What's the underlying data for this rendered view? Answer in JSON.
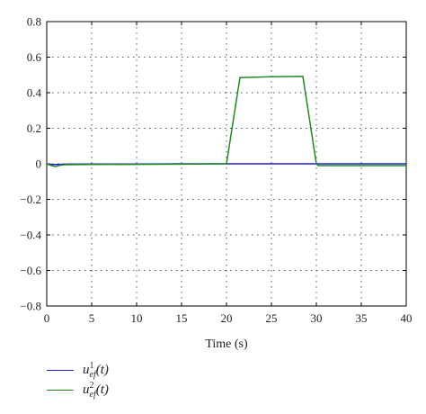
{
  "chart_data": {
    "type": "line",
    "xlabel": "Time (s)",
    "ylabel": "",
    "xlim": [
      0,
      40
    ],
    "ylim": [
      -0.8,
      0.8
    ],
    "x_ticks": [
      0,
      5,
      10,
      15,
      20,
      25,
      30,
      35,
      40
    ],
    "y_ticks": [
      -0.8,
      -0.6,
      -0.4,
      -0.2,
      0,
      0.2,
      0.4,
      0.6,
      0.8
    ],
    "grid": true,
    "legend_position": "bottom-left, below plot",
    "series": [
      {
        "name": "u_ef^1(t)",
        "color": "#1f1fcc",
        "x": [
          0,
          0.5,
          1,
          1.5,
          2,
          5,
          10,
          15,
          20,
          25,
          30,
          35,
          40
        ],
        "y": [
          0,
          -0.003,
          -0.004,
          -0.003,
          -0.002,
          -0.001,
          -0.001,
          0,
          0,
          0,
          0,
          0,
          0
        ]
      },
      {
        "name": "u_ef^2(t)",
        "color": "#1e8c1e",
        "x": [
          0,
          0.5,
          1,
          1.5,
          2,
          5,
          10,
          15,
          20,
          21.5,
          25,
          28.5,
          30,
          30.2,
          35,
          40
        ],
        "y": [
          0,
          -0.01,
          -0.015,
          -0.008,
          -0.005,
          -0.004,
          -0.003,
          -0.002,
          0.0,
          0.485,
          0.49,
          0.492,
          0.0,
          -0.01,
          -0.01,
          -0.01
        ]
      }
    ]
  },
  "legend": [
    {
      "base": "u",
      "sup": "1",
      "sub": "ef",
      "arg": "(t)",
      "color": "#1f1fcc"
    },
    {
      "base": "u",
      "sup": "2",
      "sub": "ef",
      "arg": "(t)",
      "color": "#1e8c1e"
    }
  ]
}
